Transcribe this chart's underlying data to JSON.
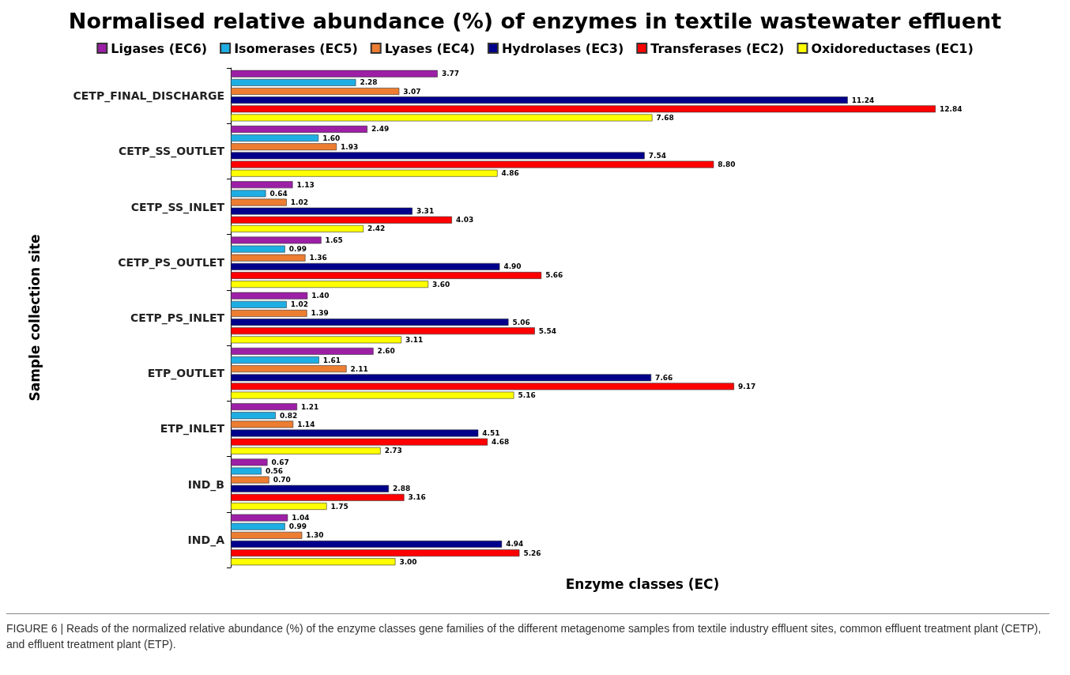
{
  "chart_data": {
    "type": "bar",
    "orientation": "horizontal",
    "title": "Normalised relative abundance (%) of enzymes in textile wastewater effluent",
    "xlabel": "Enzyme classes (EC)",
    "ylabel": "Sample collection site",
    "legend": "top",
    "grid": false,
    "categories": [
      "CETP_FINAL_DISCHARGE",
      "CETP_SS_OUTLET",
      "CETP_SS_INLET",
      "CETP_PS_OUTLET",
      "CETP_PS_INLET",
      "ETP_OUTLET",
      "ETP_INLET",
      "IND_B",
      "IND_A"
    ],
    "series": [
      {
        "name": "Ligases (EC6)",
        "color": "#9c1fa6",
        "values": [
          3.77,
          2.49,
          1.13,
          1.65,
          1.4,
          2.6,
          1.21,
          0.67,
          1.04
        ],
        "value_labels": [
          "3.77",
          "2.49",
          "1.13",
          "1.65",
          "1.40",
          "2.60",
          "1.21",
          "0.67",
          "1.04"
        ]
      },
      {
        "name": "Isomerases (EC5)",
        "color": "#1eaee3",
        "values": [
          2.28,
          1.6,
          0.64,
          0.99,
          1.02,
          1.61,
          0.82,
          0.56,
          0.99
        ],
        "value_labels": [
          "2.28",
          "1.60",
          "0.64",
          "0.99",
          "1.02",
          "1.61",
          "0.82",
          "0.56",
          "0.99"
        ]
      },
      {
        "name": "Lyases (EC4)",
        "color": "#ed7d31",
        "values": [
          3.07,
          1.93,
          1.02,
          1.36,
          1.39,
          2.11,
          1.14,
          0.7,
          1.3
        ],
        "value_labels": [
          "3.07",
          "1.93",
          "1.02",
          "1.36",
          "1.39",
          "2.11",
          "1.14",
          "0.70",
          "1.30"
        ]
      },
      {
        "name": "Hydrolases (EC3)",
        "color": "#00008b",
        "values": [
          11.24,
          7.54,
          3.31,
          4.9,
          5.06,
          7.66,
          4.51,
          2.88,
          4.94
        ],
        "value_labels": [
          "11.24",
          "7.54",
          "3.31",
          "4.90",
          "5.06",
          "7.66",
          "4.51",
          "2.88",
          "4.94"
        ]
      },
      {
        "name": "Transferases (EC2)",
        "color": "#ff0000",
        "values": [
          12.84,
          8.8,
          4.03,
          5.66,
          5.54,
          9.17,
          4.68,
          3.16,
          5.26
        ],
        "value_labels": [
          "12.84",
          "8.80",
          "4.03",
          "5.66",
          "5.54",
          "9.17",
          "4.68",
          "3.16",
          "5.26"
        ]
      },
      {
        "name": "Oxidoreductases (EC1)",
        "color": "#ffff00",
        "values": [
          7.68,
          4.86,
          2.42,
          3.6,
          3.11,
          5.16,
          2.73,
          1.75,
          3.0
        ],
        "value_labels": [
          "7.68",
          "4.86",
          "2.42",
          "3.60",
          "3.11",
          "5.16",
          "2.73",
          "1.75",
          "3.00"
        ]
      }
    ],
    "annotations": [
      "FIGURE 6 | Reads of the normalized relative abundance (%) of the enzyme classes gene families of the different metagenome samples from textile industry effluent sites, common effluent treatment plant (CETP), and effluent treatment plant (ETP)."
    ]
  }
}
